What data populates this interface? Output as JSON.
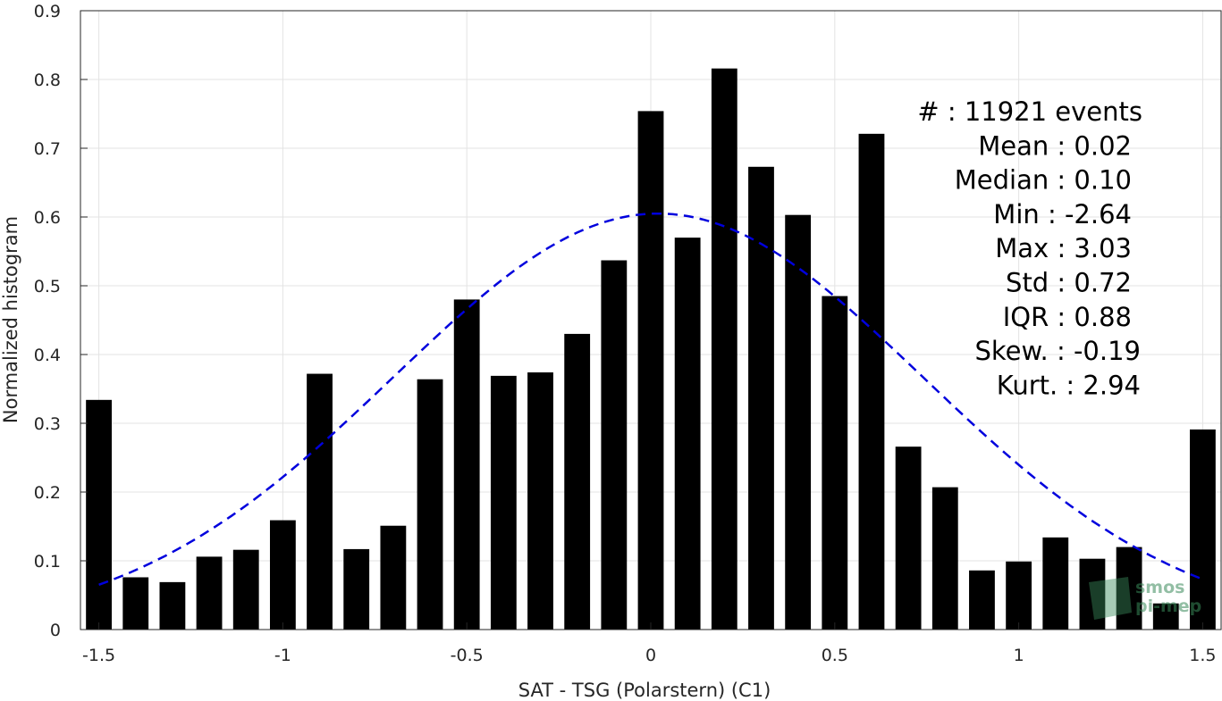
{
  "chart_data": {
    "type": "bar",
    "xlabel": "SAT - TSG (Polarstern) (C1)",
    "ylabel": "Normalized histogram",
    "xlim": [
      -1.55,
      1.55
    ],
    "ylim": [
      0,
      0.9
    ],
    "grid": true,
    "x": [
      -1.5,
      -1.4,
      -1.3,
      -1.2,
      -1.1,
      -1.0,
      -0.9,
      -0.8,
      -0.7,
      -0.6,
      -0.5,
      -0.4,
      -0.3,
      -0.2,
      -0.1,
      0.0,
      0.1,
      0.2,
      0.3,
      0.4,
      0.5,
      0.6,
      0.7,
      0.8,
      0.9,
      1.0,
      1.1,
      1.2,
      1.3,
      1.4,
      1.5
    ],
    "values": [
      0.334,
      0.076,
      0.069,
      0.106,
      0.116,
      0.159,
      0.372,
      0.117,
      0.151,
      0.364,
      0.48,
      0.369,
      0.374,
      0.43,
      0.537,
      0.754,
      0.57,
      0.816,
      0.673,
      0.603,
      0.485,
      0.721,
      0.266,
      0.207,
      0.086,
      0.099,
      0.134,
      0.103,
      0.12,
      0.038,
      0.291
    ],
    "bar_color": "#000000",
    "fit_curve": {
      "style": "dashed",
      "color": "#0000dd",
      "mean": 0.02,
      "std": 0.72,
      "peak": 0.605,
      "x_range": [
        -1.5,
        1.5
      ]
    },
    "x_ticks": [
      "-1.5",
      "-1",
      "-0.5",
      "0",
      "0.5",
      "1",
      "1.5"
    ],
    "x_tick_values": [
      -1.5,
      -1,
      -0.5,
      0,
      0.5,
      1,
      1.5
    ],
    "y_ticks": [
      "0",
      "0.1",
      "0.2",
      "0.3",
      "0.4",
      "0.5",
      "0.6",
      "0.7",
      "0.8",
      "0.9"
    ],
    "y_tick_values": [
      0,
      0.1,
      0.2,
      0.3,
      0.4,
      0.5,
      0.6,
      0.7,
      0.8,
      0.9
    ],
    "annotations": [
      "#  : 11921 events",
      "Mean : 0.02",
      "Median : 0.10",
      "Min : -2.64",
      "Max : 3.03",
      "Std : 0.72",
      "IQR : 0.88",
      "Skew. : -0.19",
      "Kurt. : 2.94"
    ]
  },
  "logo": {
    "line1": "smos",
    "line2": "pi-mep",
    "color": "#3a8a5a"
  }
}
